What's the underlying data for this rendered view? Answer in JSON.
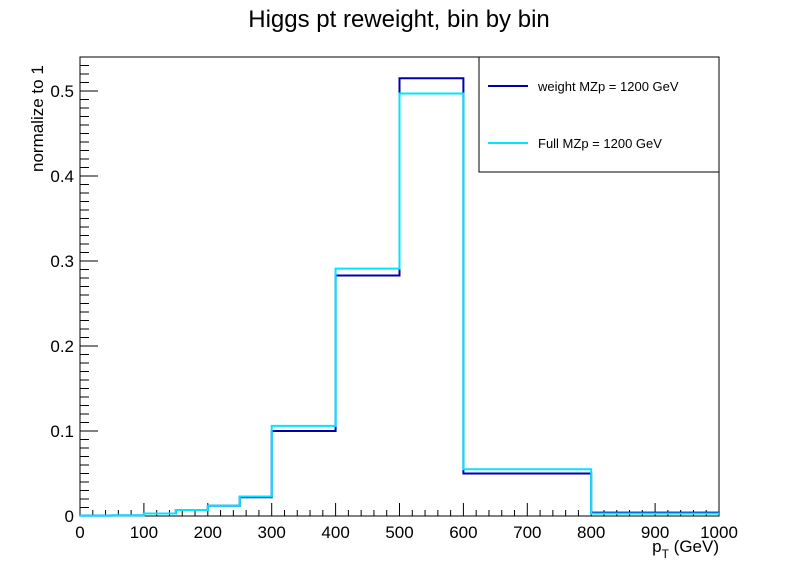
{
  "chart_data": {
    "type": "line",
    "title": "Higgs pt reweight, bin by bin",
    "xlabel_main": "p",
    "xlabel_sub": "T",
    "xlabel_unit": " (GeV)",
    "ylabel": "normalize to 1",
    "xlim": [
      0,
      1000
    ],
    "ylim": [
      0,
      0.54
    ],
    "x_ticks": [
      0,
      100,
      200,
      300,
      400,
      500,
      600,
      700,
      800,
      900,
      1000
    ],
    "y_ticks": [
      0,
      0.1,
      0.2,
      0.3,
      0.4,
      0.5
    ],
    "y_tick_labels": [
      "0",
      "0.1",
      "0.2",
      "0.3",
      "0.4",
      "0.5"
    ],
    "legend_position": "top-right",
    "series": [
      {
        "name": "weight MZp = 1200 GeV",
        "color": "#0000b0",
        "bin_edges": [
          0,
          50,
          100,
          150,
          200,
          250,
          300,
          400,
          500,
          600,
          800,
          1000
        ],
        "values": [
          0.0005,
          0.0008,
          0.003,
          0.007,
          0.012,
          0.022,
          0.1,
          0.283,
          0.515,
          0.05,
          0.004
        ]
      },
      {
        "name": "Full MZp = 1200 GeV",
        "color": "#00e5ff",
        "bin_edges": [
          0,
          50,
          100,
          150,
          200,
          250,
          300,
          400,
          500,
          600,
          800,
          1000
        ],
        "values": [
          0.0005,
          0.0008,
          0.003,
          0.007,
          0.012,
          0.023,
          0.106,
          0.291,
          0.497,
          0.055,
          0.003
        ]
      }
    ]
  }
}
